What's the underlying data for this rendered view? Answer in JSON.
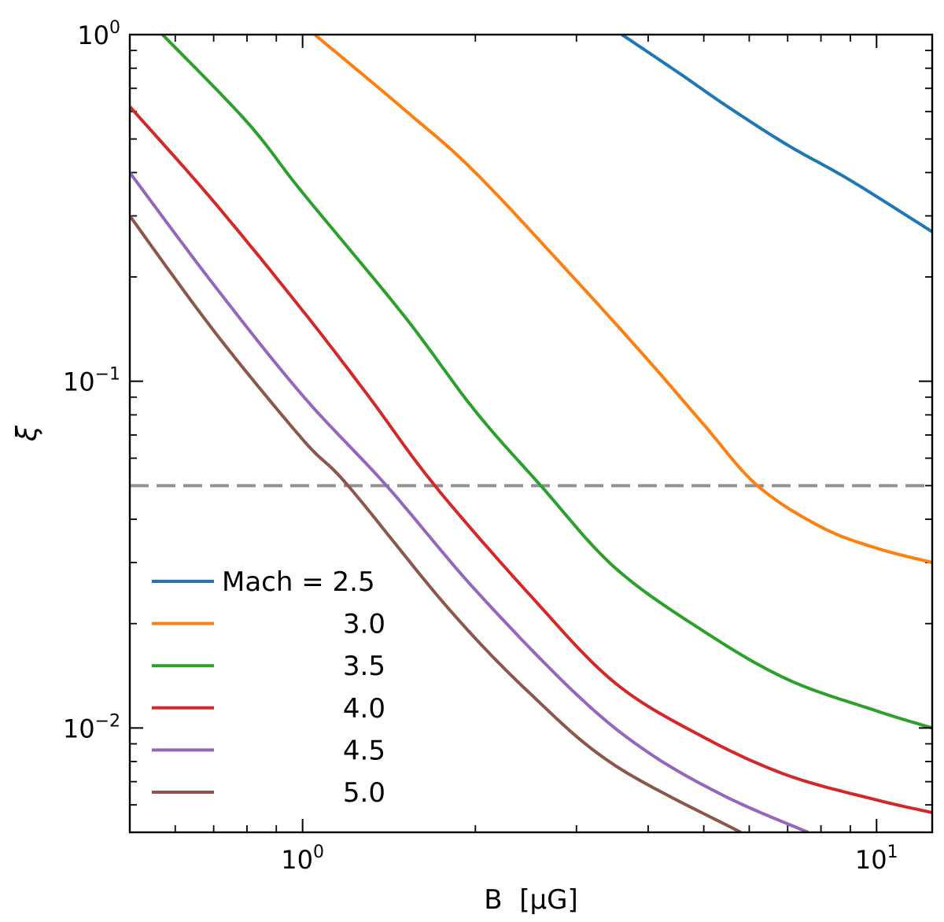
{
  "chart_data": {
    "type": "line",
    "title": "",
    "xlabel": "B  [μG]",
    "ylabel": "ξ",
    "xscale": "log",
    "yscale": "log",
    "xlim": [
      0.5,
      12.5
    ],
    "ylim": [
      0.005,
      1.0
    ],
    "x_ticks": [
      {
        "value": 1,
        "base": "10",
        "exp": "0"
      },
      {
        "value": 10,
        "base": "10",
        "exp": "1"
      }
    ],
    "y_ticks": [
      {
        "value": 1,
        "base": "10",
        "exp": "0"
      },
      {
        "value": 0.1,
        "base": "10",
        "exp": "−1"
      },
      {
        "value": 0.01,
        "base": "10",
        "exp": "−2"
      }
    ],
    "reference_line": {
      "y": 0.05,
      "color": "#929292",
      "style": "dashed"
    },
    "legend": {
      "position": "lower-left",
      "prefix": "Mach = ",
      "entries": [
        "2.5",
        "3.0",
        "3.5",
        "4.0",
        "4.5",
        "5.0"
      ]
    },
    "series": [
      {
        "name": "2.5",
        "color": "#1f77b4",
        "points": [
          [
            3.6,
            1.0
          ],
          [
            4.5,
            0.78
          ],
          [
            5.5,
            0.62
          ],
          [
            7.0,
            0.48
          ],
          [
            9.0,
            0.38
          ],
          [
            12.5,
            0.27
          ]
        ]
      },
      {
        "name": "3.0",
        "color": "#ff7f0e",
        "points": [
          [
            1.05,
            1.0
          ],
          [
            1.5,
            0.61
          ],
          [
            2.0,
            0.4
          ],
          [
            3.0,
            0.195
          ],
          [
            4.0,
            0.115
          ],
          [
            5.0,
            0.075
          ],
          [
            6.2,
            0.05
          ],
          [
            8.0,
            0.038
          ],
          [
            10.0,
            0.033
          ],
          [
            12.5,
            0.03
          ]
        ]
      },
      {
        "name": "3.5",
        "color": "#2ca02c",
        "points": [
          [
            0.57,
            1.0
          ],
          [
            0.8,
            0.56
          ],
          [
            1.0,
            0.35
          ],
          [
            1.5,
            0.155
          ],
          [
            2.0,
            0.082
          ],
          [
            2.6,
            0.05
          ],
          [
            3.5,
            0.029
          ],
          [
            5.0,
            0.019
          ],
          [
            7.0,
            0.0138
          ],
          [
            10.0,
            0.0112
          ],
          [
            12.5,
            0.01
          ]
        ]
      },
      {
        "name": "4.0",
        "color": "#d62728",
        "points": [
          [
            0.5,
            0.62
          ],
          [
            0.7,
            0.33
          ],
          [
            1.0,
            0.16
          ],
          [
            1.3,
            0.091
          ],
          [
            1.7,
            0.05
          ],
          [
            2.5,
            0.024
          ],
          [
            3.5,
            0.0135
          ],
          [
            5.0,
            0.0094
          ],
          [
            7.0,
            0.0073
          ],
          [
            10.0,
            0.0062
          ],
          [
            12.5,
            0.0057
          ]
        ]
      },
      {
        "name": "4.5",
        "color": "#9467bd",
        "points": [
          [
            0.5,
            0.4
          ],
          [
            0.7,
            0.19
          ],
          [
            1.0,
            0.091
          ],
          [
            1.4,
            0.05
          ],
          [
            2.0,
            0.025
          ],
          [
            3.0,
            0.0125
          ],
          [
            4.0,
            0.0085
          ],
          [
            5.5,
            0.0063
          ],
          [
            7.6,
            0.005
          ]
        ]
      },
      {
        "name": "5.0",
        "color": "#8c564b",
        "points": [
          [
            0.5,
            0.3
          ],
          [
            0.7,
            0.14
          ],
          [
            1.0,
            0.068
          ],
          [
            1.2,
            0.05
          ],
          [
            1.8,
            0.022
          ],
          [
            2.5,
            0.0125
          ],
          [
            3.5,
            0.0078
          ],
          [
            5.8,
            0.005
          ]
        ]
      }
    ]
  }
}
